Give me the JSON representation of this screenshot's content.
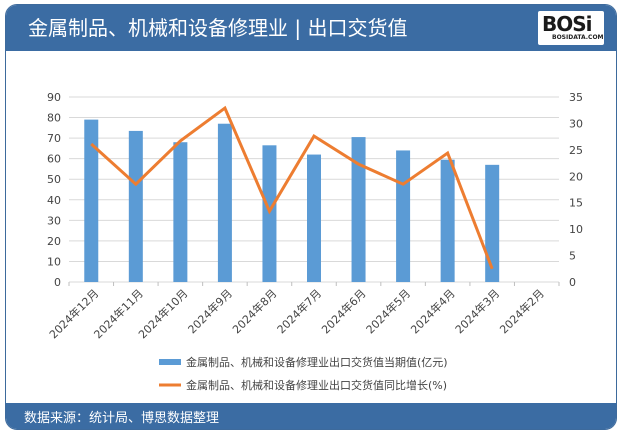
{
  "header": {
    "title": "金属制品、机械和设备修理业 | 出口交货值",
    "logo_text": "BOSi",
    "logo_sub": "BOSIDATA.COM"
  },
  "footer": {
    "source": "数据来源：统计局、博思数据整理"
  },
  "colors": {
    "header_bg": "#3b6ca3",
    "bar": "#5b9bd5",
    "line": "#ed7d31",
    "grid": "#d9d9d9"
  },
  "chart_data": {
    "type": "bar+line",
    "title": "金属制品、机械和设备修理业 | 出口交货值",
    "categories": [
      "2024年12月",
      "2024年11月",
      "2024年10月",
      "2024年9月",
      "2024年8月",
      "2024年7月",
      "2024年6月",
      "2024年5月",
      "2024年4月",
      "2024年3月",
      "2024年2月"
    ],
    "series": [
      {
        "name": "金属制品、机械和设备修理业出口交货值当期值(亿元)",
        "type": "bar",
        "axis": "left",
        "values": [
          79,
          73.5,
          68,
          77,
          66.5,
          62,
          70.5,
          64,
          59.5,
          57,
          null
        ]
      },
      {
        "name": "金属制品、机械和设备修理业出口交货值同比增长(%)",
        "type": "line",
        "axis": "right",
        "values": [
          26.1,
          18.5,
          26.7,
          32.9,
          13.4,
          27.6,
          22.3,
          18.5,
          24.4,
          2.5,
          null
        ]
      }
    ],
    "y_left": {
      "min": 0,
      "max": 90,
      "step": 10,
      "ticks": [
        "0",
        "10",
        "20",
        "30",
        "40",
        "50",
        "60",
        "70",
        "80",
        "90"
      ]
    },
    "y_right": {
      "min": 0,
      "max": 35,
      "step": 5,
      "ticks": [
        "0",
        "5",
        "10",
        "15",
        "20",
        "25",
        "30",
        "35"
      ]
    },
    "xlabel": "",
    "ylabel": "",
    "grid": true,
    "legend_position": "bottom"
  }
}
